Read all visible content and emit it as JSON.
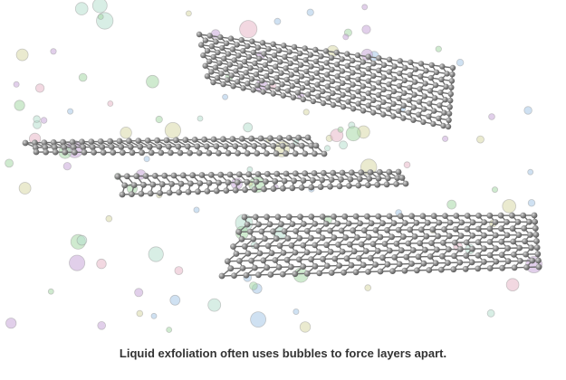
{
  "caption": "Liquid exfoliation often uses bubbles to force layers apart.",
  "colors": {
    "atom": "#8a8a8a",
    "bond": "#6f6f6f",
    "bubble_palette": [
      "#a8d8a8",
      "#c9a8d8",
      "#a8c8e8",
      "#e8b8c8",
      "#d8d8a8",
      "#b8e0d0"
    ]
  }
}
